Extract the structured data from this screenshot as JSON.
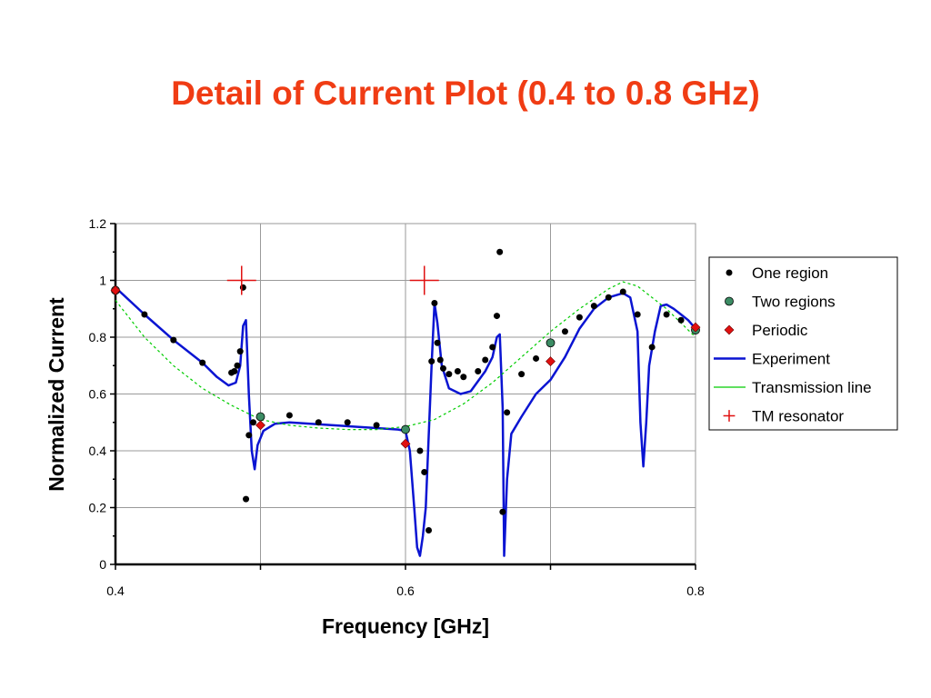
{
  "slide": {
    "title": "Detail of Current Plot (0.4 to 0.8 GHz)",
    "title_color": "#f03c14"
  },
  "chart_data": {
    "type": "scatter",
    "xlabel": "Frequency [GHz]",
    "ylabel": "Normalized Current",
    "xlim": [
      0.4,
      0.8
    ],
    "ylim": [
      0,
      1.2
    ],
    "x_ticks": [
      0.4,
      0.6,
      0.8
    ],
    "x_tick_labels": [
      "0.4",
      "0.6",
      "0.8"
    ],
    "x_gridlines": [
      0.5,
      0.6,
      0.7,
      0.8
    ],
    "y_ticks": [
      0,
      0.2,
      0.4,
      0.6,
      0.8,
      1,
      1.2
    ],
    "y_tick_labels": [
      "0",
      "0.2",
      "0.4",
      "0.6",
      "0.8",
      "1",
      "1.2"
    ],
    "grid": true,
    "legend_position": "right",
    "series": [
      {
        "name": "One region",
        "kind": "marker",
        "marker": "circle",
        "color": "#000000",
        "points": [
          [
            0.42,
            0.88
          ],
          [
            0.44,
            0.79
          ],
          [
            0.46,
            0.71
          ],
          [
            0.48,
            0.675
          ],
          [
            0.482,
            0.68
          ],
          [
            0.484,
            0.7
          ],
          [
            0.486,
            0.75
          ],
          [
            0.488,
            0.975
          ],
          [
            0.49,
            0.23
          ],
          [
            0.492,
            0.455
          ],
          [
            0.495,
            0.5
          ],
          [
            0.52,
            0.525
          ],
          [
            0.54,
            0.5
          ],
          [
            0.56,
            0.5
          ],
          [
            0.58,
            0.49
          ],
          [
            0.61,
            0.4
          ],
          [
            0.613,
            0.325
          ],
          [
            0.616,
            0.12
          ],
          [
            0.618,
            0.715
          ],
          [
            0.62,
            0.92
          ],
          [
            0.622,
            0.78
          ],
          [
            0.624,
            0.72
          ],
          [
            0.626,
            0.69
          ],
          [
            0.63,
            0.67
          ],
          [
            0.636,
            0.68
          ],
          [
            0.64,
            0.66
          ],
          [
            0.65,
            0.68
          ],
          [
            0.655,
            0.72
          ],
          [
            0.66,
            0.765
          ],
          [
            0.663,
            0.875
          ],
          [
            0.665,
            1.1
          ],
          [
            0.667,
            0.185
          ],
          [
            0.67,
            0.535
          ],
          [
            0.68,
            0.67
          ],
          [
            0.69,
            0.725
          ],
          [
            0.71,
            0.82
          ],
          [
            0.72,
            0.87
          ],
          [
            0.73,
            0.91
          ],
          [
            0.74,
            0.94
          ],
          [
            0.75,
            0.96
          ],
          [
            0.76,
            0.88
          ],
          [
            0.77,
            0.765
          ],
          [
            0.78,
            0.88
          ],
          [
            0.79,
            0.86
          ]
        ]
      },
      {
        "name": "Two regions",
        "kind": "marker",
        "marker": "circle",
        "color": "#3c8c64",
        "points": [
          [
            0.4,
            0.965
          ],
          [
            0.5,
            0.52
          ],
          [
            0.6,
            0.475
          ],
          [
            0.7,
            0.78
          ],
          [
            0.8,
            0.825
          ]
        ]
      },
      {
        "name": "Periodic",
        "kind": "marker",
        "marker": "diamond",
        "color": "#e01010",
        "points": [
          [
            0.4,
            0.965
          ],
          [
            0.5,
            0.49
          ],
          [
            0.6,
            0.425
          ],
          [
            0.7,
            0.715
          ],
          [
            0.8,
            0.835
          ]
        ]
      },
      {
        "name": "Experiment",
        "kind": "line",
        "color": "#0a14d2",
        "points": [
          [
            0.4,
            0.975
          ],
          [
            0.42,
            0.88
          ],
          [
            0.44,
            0.79
          ],
          [
            0.46,
            0.71
          ],
          [
            0.47,
            0.66
          ],
          [
            0.478,
            0.63
          ],
          [
            0.483,
            0.64
          ],
          [
            0.486,
            0.7
          ],
          [
            0.488,
            0.84
          ],
          [
            0.49,
            0.86
          ],
          [
            0.492,
            0.6
          ],
          [
            0.494,
            0.4
          ],
          [
            0.496,
            0.335
          ],
          [
            0.498,
            0.42
          ],
          [
            0.502,
            0.47
          ],
          [
            0.51,
            0.495
          ],
          [
            0.52,
            0.5
          ],
          [
            0.55,
            0.49
          ],
          [
            0.58,
            0.48
          ],
          [
            0.595,
            0.475
          ],
          [
            0.6,
            0.47
          ],
          [
            0.603,
            0.4
          ],
          [
            0.606,
            0.2
          ],
          [
            0.608,
            0.06
          ],
          [
            0.61,
            0.03
          ],
          [
            0.612,
            0.1
          ],
          [
            0.614,
            0.2
          ],
          [
            0.616,
            0.45
          ],
          [
            0.618,
            0.7
          ],
          [
            0.62,
            0.92
          ],
          [
            0.622,
            0.85
          ],
          [
            0.625,
            0.7
          ],
          [
            0.63,
            0.62
          ],
          [
            0.638,
            0.6
          ],
          [
            0.645,
            0.61
          ],
          [
            0.655,
            0.68
          ],
          [
            0.66,
            0.73
          ],
          [
            0.663,
            0.8
          ],
          [
            0.665,
            0.81
          ],
          [
            0.667,
            0.55
          ],
          [
            0.668,
            0.03
          ],
          [
            0.67,
            0.3
          ],
          [
            0.673,
            0.46
          ],
          [
            0.68,
            0.52
          ],
          [
            0.69,
            0.6
          ],
          [
            0.7,
            0.65
          ],
          [
            0.71,
            0.73
          ],
          [
            0.72,
            0.83
          ],
          [
            0.73,
            0.9
          ],
          [
            0.74,
            0.94
          ],
          [
            0.75,
            0.955
          ],
          [
            0.755,
            0.94
          ],
          [
            0.76,
            0.82
          ],
          [
            0.762,
            0.5
          ],
          [
            0.764,
            0.345
          ],
          [
            0.766,
            0.5
          ],
          [
            0.768,
            0.7
          ],
          [
            0.772,
            0.82
          ],
          [
            0.776,
            0.91
          ],
          [
            0.78,
            0.915
          ],
          [
            0.785,
            0.9
          ],
          [
            0.79,
            0.88
          ],
          [
            0.795,
            0.86
          ],
          [
            0.8,
            0.83
          ]
        ]
      },
      {
        "name": "Transmission line",
        "kind": "line",
        "dashed": true,
        "color": "#00cc00",
        "points": [
          [
            0.4,
            0.93
          ],
          [
            0.42,
            0.8
          ],
          [
            0.44,
            0.7
          ],
          [
            0.46,
            0.62
          ],
          [
            0.48,
            0.56
          ],
          [
            0.5,
            0.51
          ],
          [
            0.52,
            0.49
          ],
          [
            0.54,
            0.48
          ],
          [
            0.56,
            0.475
          ],
          [
            0.58,
            0.475
          ],
          [
            0.6,
            0.485
          ],
          [
            0.62,
            0.51
          ],
          [
            0.64,
            0.565
          ],
          [
            0.66,
            0.64
          ],
          [
            0.68,
            0.73
          ],
          [
            0.7,
            0.82
          ],
          [
            0.72,
            0.9
          ],
          [
            0.74,
            0.97
          ],
          [
            0.75,
            0.995
          ],
          [
            0.76,
            0.98
          ],
          [
            0.78,
            0.9
          ],
          [
            0.8,
            0.8
          ]
        ]
      },
      {
        "name": "TM resonator",
        "kind": "marker",
        "marker": "plus",
        "color": "#e01010",
        "points": [
          [
            0.487,
            1.0
          ],
          [
            0.613,
            1.0
          ]
        ]
      }
    ]
  }
}
